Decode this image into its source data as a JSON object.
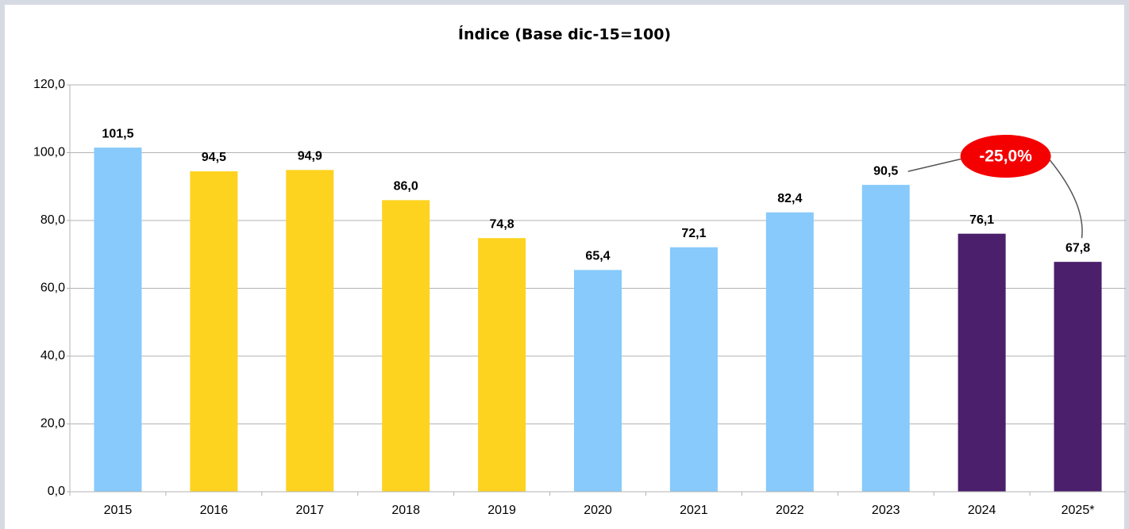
{
  "chart_data": {
    "type": "bar",
    "title": "Índice (Base dic-15=100)",
    "categories": [
      "2015",
      "2016",
      "2017",
      "2018",
      "2019",
      "2020",
      "2021",
      "2022",
      "2023",
      "2024",
      "2025*"
    ],
    "values": [
      101.5,
      94.5,
      94.9,
      86.0,
      74.8,
      65.4,
      72.1,
      82.4,
      90.5,
      76.1,
      67.8
    ],
    "value_labels": [
      "101,5",
      "94,5",
      "94,9",
      "86,0",
      "74,8",
      "65,4",
      "72,1",
      "82,4",
      "90,5",
      "76,1",
      "67,8"
    ],
    "colors": [
      "#87cafb",
      "#fdd320",
      "#fdd320",
      "#fdd320",
      "#fdd320",
      "#87cafb",
      "#87cafb",
      "#87cafb",
      "#87cafb",
      "#4b1f6b",
      "#4b1f6b"
    ],
    "ylim": [
      0,
      120
    ],
    "yticks": [
      {
        "value": 0,
        "label": "0,0"
      },
      {
        "value": 20,
        "label": "20,0"
      },
      {
        "value": 40,
        "label": "40,0"
      },
      {
        "value": 60,
        "label": "60,0"
      },
      {
        "value": 80,
        "label": "80,0"
      },
      {
        "value": 100,
        "label": "100,0"
      },
      {
        "value": 120,
        "label": "120,0"
      }
    ],
    "grid": true,
    "annotation": "-25,0%"
  }
}
